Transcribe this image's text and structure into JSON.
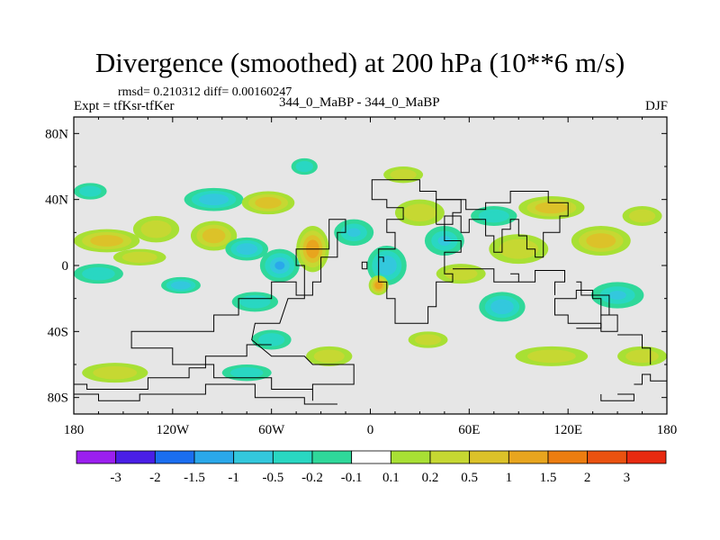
{
  "title": "Divergence (smoothed) at 200 hPa (10**6 m/s)",
  "stats": "rmsd= 0.210312 diff= 0.00160247",
  "experiment": "Expt = tfKsr-tfKer",
  "case_label": "344_0_MaBP - 344_0_MaBP",
  "season": "DJF",
  "chart_data": {
    "type": "heatmap",
    "title": "Divergence (smoothed) at 200 hPa (10**6 m/s)",
    "xlabel": "",
    "ylabel": "",
    "xlim": [
      -180,
      180
    ],
    "ylim": [
      -90,
      90
    ],
    "x_ticks": [
      -180,
      -120,
      -60,
      0,
      60,
      120,
      180
    ],
    "x_tick_labels": [
      "180",
      "120W",
      "60W",
      "0",
      "60E",
      "120E",
      "180"
    ],
    "y_ticks": [
      80,
      40,
      0,
      -40,
      -80
    ],
    "y_tick_labels": [
      "80N",
      "40N",
      "0",
      "40S",
      "80S"
    ],
    "background_color": "#e6e6e6",
    "colorbar": {
      "colors": [
        "#9b1fef",
        "#4a1ee6",
        "#1a6ef0",
        "#2aa8ea",
        "#33c8dd",
        "#29d7c2",
        "#2fd89a",
        "#ffffff",
        "#a8e034",
        "#c6d832",
        "#dcc229",
        "#e8a51e",
        "#ec7d10",
        "#ea5210",
        "#e82a10"
      ],
      "labels": [
        "-3",
        "-2",
        "-1.5",
        "-1",
        "-0.5",
        "-0.2",
        "-0.1",
        "0.1",
        "0.2",
        "0.5",
        "1",
        "1.5",
        "2",
        "3"
      ]
    },
    "anomalies": [
      {
        "lon": -160,
        "lat": 15,
        "rx": 20,
        "ry": 7,
        "value": 0.6
      },
      {
        "lon": -165,
        "lat": -5,
        "rx": 15,
        "ry": 6,
        "value": -0.25
      },
      {
        "lon": -130,
        "lat": 22,
        "rx": 14,
        "ry": 8,
        "value": 0.35
      },
      {
        "lon": -140,
        "lat": 5,
        "rx": 16,
        "ry": 5,
        "value": 0.25
      },
      {
        "lon": -115,
        "lat": -12,
        "rx": 12,
        "ry": 5,
        "value": -0.6
      },
      {
        "lon": -95,
        "lat": 40,
        "rx": 18,
        "ry": 7,
        "value": -0.6
      },
      {
        "lon": -95,
        "lat": 18,
        "rx": 14,
        "ry": 9,
        "value": 0.8
      },
      {
        "lon": -75,
        "lat": 10,
        "rx": 13,
        "ry": 7,
        "value": -0.6
      },
      {
        "lon": -62,
        "lat": 38,
        "rx": 16,
        "ry": 7,
        "value": 0.7
      },
      {
        "lon": -55,
        "lat": 0,
        "rx": 12,
        "ry": 10,
        "value": -1.0
      },
      {
        "lon": -70,
        "lat": -22,
        "rx": 14,
        "ry": 6,
        "value": -0.4
      },
      {
        "lon": -35,
        "lat": 10,
        "rx": 10,
        "ry": 14,
        "value": 1.4
      },
      {
        "lon": -10,
        "lat": 20,
        "rx": 12,
        "ry": 8,
        "value": -0.5
      },
      {
        "lon": 10,
        "lat": 0,
        "rx": 12,
        "ry": 12,
        "value": -0.8
      },
      {
        "lon": 5,
        "lat": -12,
        "rx": 6,
        "ry": 6,
        "value": 1.3
      },
      {
        "lon": 30,
        "lat": 32,
        "rx": 15,
        "ry": 8,
        "value": 0.4
      },
      {
        "lon": 45,
        "lat": 15,
        "rx": 12,
        "ry": 9,
        "value": -0.5
      },
      {
        "lon": 55,
        "lat": -5,
        "rx": 15,
        "ry": 6,
        "value": 0.5
      },
      {
        "lon": 75,
        "lat": 30,
        "rx": 14,
        "ry": 6,
        "value": -0.4
      },
      {
        "lon": 90,
        "lat": 10,
        "rx": 18,
        "ry": 9,
        "value": 0.5
      },
      {
        "lon": 80,
        "lat": -25,
        "rx": 14,
        "ry": 9,
        "value": -0.6
      },
      {
        "lon": 110,
        "lat": 35,
        "rx": 20,
        "ry": 7,
        "value": 0.7
      },
      {
        "lon": 140,
        "lat": 15,
        "rx": 18,
        "ry": 9,
        "value": 0.6
      },
      {
        "lon": 150,
        "lat": -18,
        "rx": 16,
        "ry": 8,
        "value": -0.5
      },
      {
        "lon": 165,
        "lat": 30,
        "rx": 12,
        "ry": 6,
        "value": 0.4
      },
      {
        "lon": -60,
        "lat": -45,
        "rx": 12,
        "ry": 6,
        "value": -0.3
      },
      {
        "lon": -25,
        "lat": -55,
        "rx": 14,
        "ry": 6,
        "value": 0.5
      },
      {
        "lon": 35,
        "lat": -45,
        "rx": 12,
        "ry": 5,
        "value": 0.3
      },
      {
        "lon": 110,
        "lat": -55,
        "rx": 22,
        "ry": 6,
        "value": 0.3
      },
      {
        "lon": 165,
        "lat": -55,
        "rx": 15,
        "ry": 6,
        "value": 0.3
      },
      {
        "lon": -155,
        "lat": -65,
        "rx": 20,
        "ry": 6,
        "value": 0.3
      },
      {
        "lon": -75,
        "lat": -65,
        "rx": 15,
        "ry": 5,
        "value": -0.3
      },
      {
        "lon": 20,
        "lat": 55,
        "rx": 12,
        "ry": 5,
        "value": 0.25
      },
      {
        "lon": -40,
        "lat": 60,
        "rx": 8,
        "ry": 5,
        "value": -0.25
      },
      {
        "lon": -170,
        "lat": 45,
        "rx": 10,
        "ry": 5,
        "value": -0.25
      }
    ]
  }
}
